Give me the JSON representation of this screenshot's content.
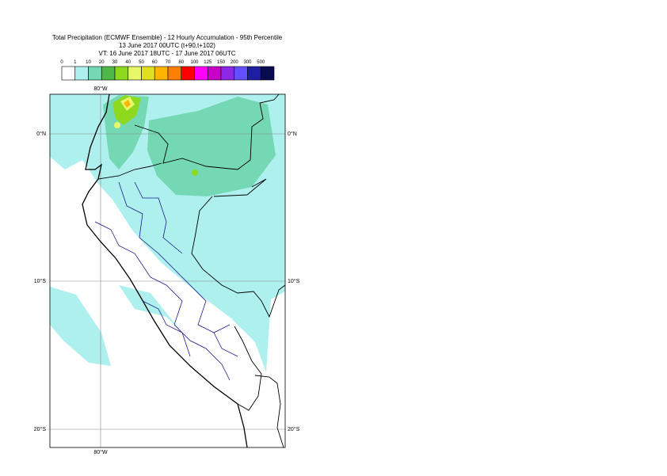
{
  "header": {
    "title": "Total Precipitation (ECMWF Ensemble) - 12 Hourly Accumulation - 95th Percentile",
    "line2": "13 June 2017 00UTC (t+90,t+102)",
    "line3": "VT: 16 June 2017 18UTC - 17 June 2017 06UTC"
  },
  "legend": {
    "thresholds": [
      "0",
      "1",
      "10",
      "20",
      "30",
      "40",
      "50",
      "60",
      "70",
      "80",
      "100",
      "125",
      "150",
      "200",
      "300",
      "500"
    ],
    "colors": [
      "#ffffff",
      "#aef0ee",
      "#74d8b4",
      "#4eb848",
      "#8ed81e",
      "#e6f86a",
      "#e0e020",
      "#ffb400",
      "#ff8000",
      "#ff0000",
      "#ff00ff",
      "#c800c8",
      "#8c28e6",
      "#6450ff",
      "#1e1ea0",
      "#0a0a50"
    ]
  },
  "map": {
    "lon_labels": [
      "80°W"
    ],
    "lat_labels": [
      "0°N",
      "10°S",
      "20°S"
    ]
  }
}
